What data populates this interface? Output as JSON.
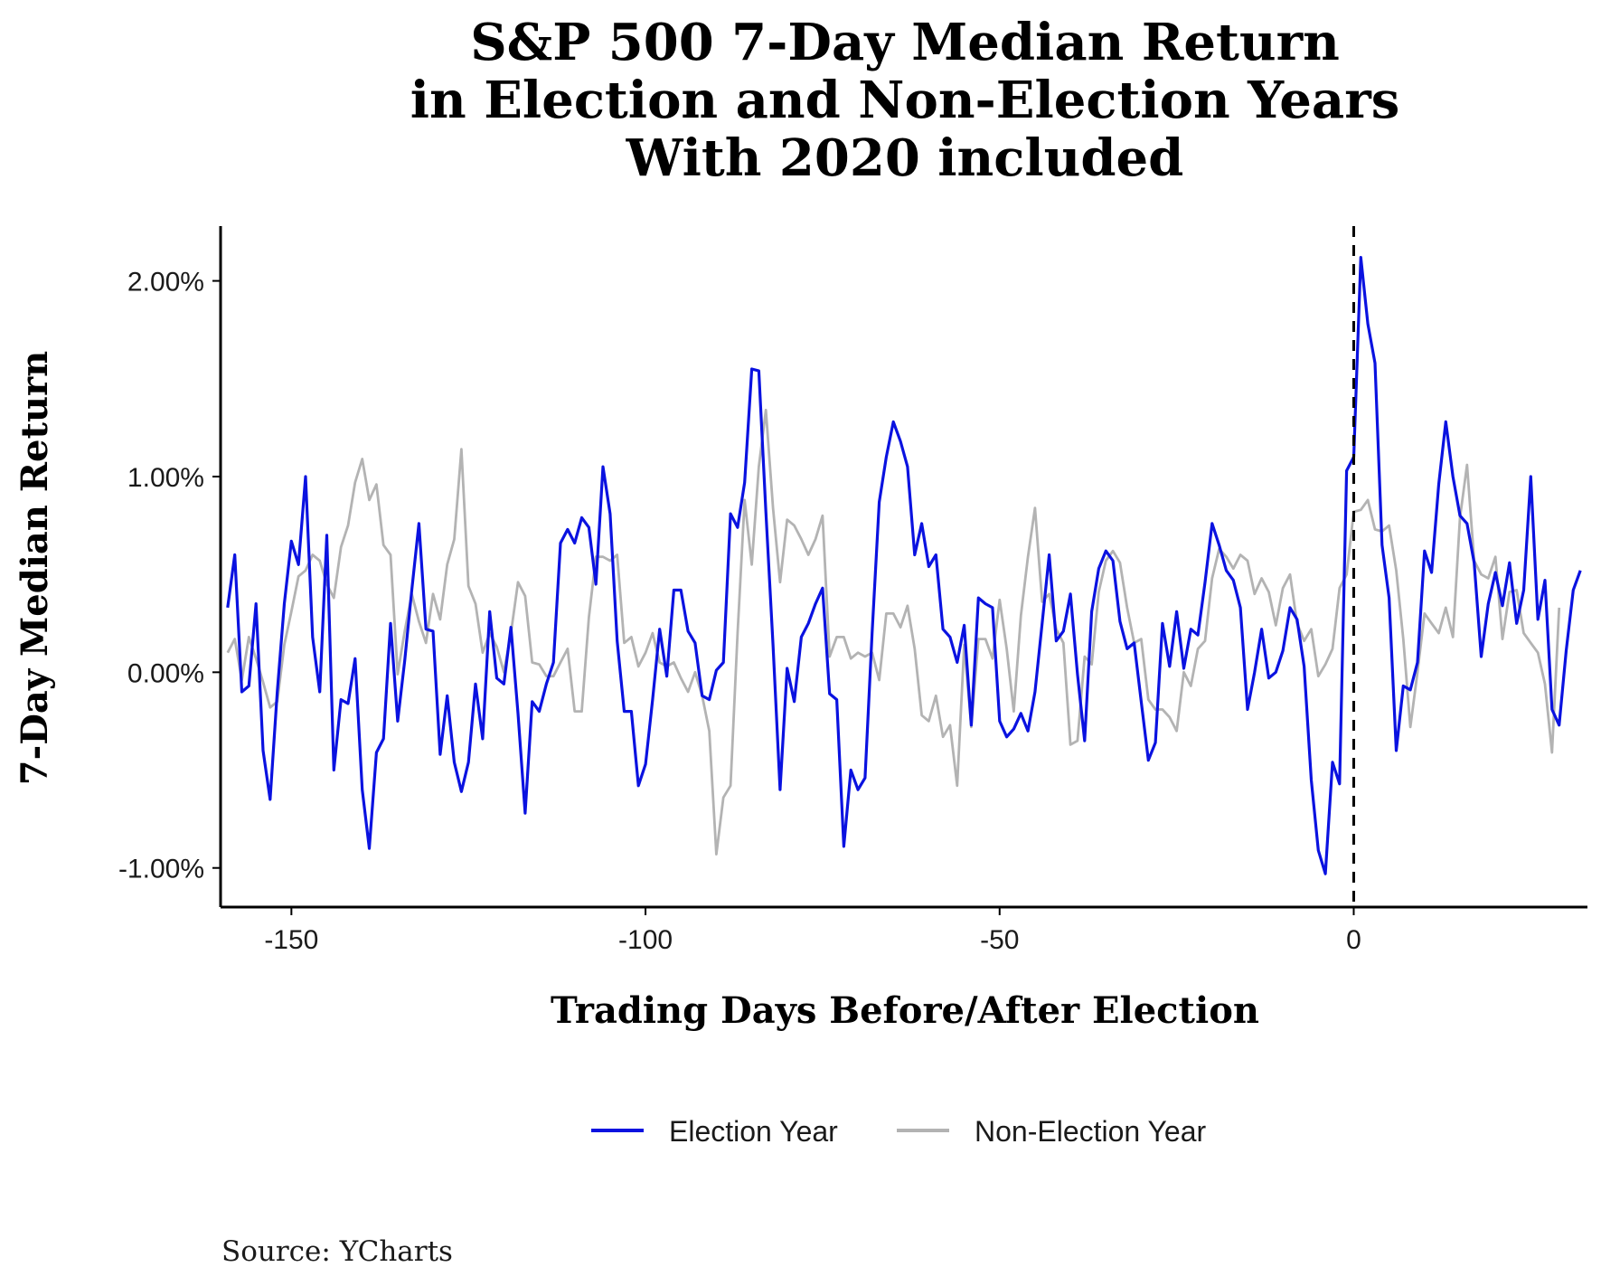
{
  "chart_data": {
    "type": "line",
    "title_lines": [
      "S&P 500 7-Day Median Return",
      "in Election and Non-Election Years",
      "With 2020 included"
    ],
    "xlabel": "Trading Days Before/After Election",
    "ylabel": "7-Day Median Return",
    "source": "Source:  YCharts",
    "xlim": [
      -160,
      33
    ],
    "ylim": [
      -1.2,
      2.28
    ],
    "x_ticks": [
      -150,
      -100,
      -50,
      0
    ],
    "x_tick_labels": [
      "-150",
      "-100",
      "-50",
      "0"
    ],
    "y_ticks": [
      -1,
      0,
      1,
      2
    ],
    "y_tick_labels": [
      "-1.00%",
      "0.00%",
      "1.00%",
      "2.00%"
    ],
    "vline_x": 0,
    "legend_position": "bottom",
    "x_start": -159,
    "series": [
      {
        "name": "Election Year",
        "color": "#0a12e0",
        "values": [
          0.33,
          0.6,
          -0.1,
          -0.07,
          0.35,
          -0.4,
          -0.65,
          -0.1,
          0.35,
          0.67,
          0.55,
          1.0,
          0.18,
          -0.1,
          0.7,
          -0.5,
          -0.14,
          -0.16,
          0.07,
          -0.6,
          -0.9,
          -0.41,
          -0.34,
          0.25,
          -0.25,
          0.06,
          0.42,
          0.76,
          0.22,
          0.21,
          -0.42,
          -0.12,
          -0.46,
          -0.61,
          -0.46,
          -0.06,
          -0.34,
          0.31,
          -0.03,
          -0.06,
          0.23,
          -0.21,
          -0.72,
          -0.15,
          -0.2,
          -0.06,
          0.05,
          0.66,
          0.73,
          0.66,
          0.79,
          0.74,
          0.45,
          1.05,
          0.81,
          0.16,
          -0.2,
          -0.2,
          -0.58,
          -0.47,
          -0.14,
          0.22,
          -0.02,
          0.42,
          0.42,
          0.21,
          0.15,
          -0.12,
          -0.14,
          0.01,
          0.05,
          0.81,
          0.74,
          0.97,
          1.55,
          1.54,
          0.82,
          0.14,
          -0.6,
          0.02,
          -0.15,
          0.18,
          0.25,
          0.35,
          0.43,
          -0.11,
          -0.14,
          -0.89,
          -0.5,
          -0.6,
          -0.54,
          0.2,
          0.87,
          1.1,
          1.28,
          1.18,
          1.05,
          0.6,
          0.76,
          0.54,
          0.6,
          0.22,
          0.18,
          0.05,
          0.24,
          -0.27,
          0.38,
          0.35,
          0.33,
          -0.25,
          -0.33,
          -0.29,
          -0.21,
          -0.3,
          -0.1,
          0.25,
          0.6,
          0.16,
          0.21,
          0.4,
          -0.01,
          -0.35,
          0.31,
          0.53,
          0.62,
          0.57,
          0.26,
          0.12,
          0.15,
          -0.15,
          -0.45,
          -0.36,
          0.25,
          0.03,
          0.31,
          0.02,
          0.22,
          0.19,
          0.46,
          0.76,
          0.65,
          0.52,
          0.47,
          0.33,
          -0.19,
          0.0,
          0.22,
          -0.03,
          0.0,
          0.11,
          0.33,
          0.27,
          0.03,
          -0.55,
          -0.91,
          -1.03,
          -0.46,
          -0.57,
          1.03,
          1.1,
          2.12,
          1.78,
          1.58,
          0.65,
          0.38,
          -0.4,
          -0.07,
          -0.09,
          0.05,
          0.62,
          0.51,
          0.96,
          1.28,
          1.0,
          0.8,
          0.76,
          0.56,
          0.08,
          0.35,
          0.51,
          0.34,
          0.56,
          0.25,
          0.42,
          1.0,
          0.27,
          0.47,
          -0.19,
          -0.27,
          0.11,
          0.42,
          0.52
        ]
      },
      {
        "name": "Non-Election Year",
        "color": "#b3b3b3",
        "values": [
          0.1,
          0.17,
          -0.04,
          0.18,
          0.07,
          -0.05,
          -0.18,
          -0.15,
          0.14,
          0.31,
          0.49,
          0.52,
          0.6,
          0.57,
          0.45,
          0.38,
          0.64,
          0.75,
          0.97,
          1.09,
          0.88,
          0.96,
          0.65,
          0.6,
          -0.01,
          0.21,
          0.4,
          0.26,
          0.15,
          0.4,
          0.27,
          0.55,
          0.68,
          1.14,
          0.44,
          0.35,
          0.1,
          0.2,
          0.13,
          0.0,
          0.2,
          0.46,
          0.39,
          0.05,
          0.04,
          -0.02,
          -0.02,
          0.05,
          0.12,
          -0.2,
          -0.2,
          0.28,
          0.59,
          0.59,
          0.57,
          0.6,
          0.15,
          0.18,
          0.03,
          0.1,
          0.2,
          0.05,
          0.03,
          0.05,
          -0.03,
          -0.1,
          0.0,
          -0.12,
          -0.3,
          -0.93,
          -0.64,
          -0.58,
          0.2,
          0.88,
          0.55,
          1.05,
          1.34,
          0.84,
          0.46,
          0.78,
          0.75,
          0.68,
          0.6,
          0.68,
          0.8,
          0.08,
          0.18,
          0.18,
          0.07,
          0.1,
          0.08,
          0.1,
          -0.04,
          0.3,
          0.3,
          0.23,
          0.34,
          0.12,
          -0.22,
          -0.25,
          -0.12,
          -0.33,
          -0.27,
          -0.58,
          0.14,
          -0.28,
          0.17,
          0.17,
          0.07,
          0.37,
          0.12,
          -0.2,
          0.29,
          0.59,
          0.84,
          0.36,
          0.4,
          0.22,
          0.15,
          -0.37,
          -0.35,
          0.08,
          0.04,
          0.41,
          0.57,
          0.62,
          0.56,
          0.33,
          0.15,
          0.17,
          -0.14,
          -0.19,
          -0.19,
          -0.23,
          -0.3,
          0.0,
          -0.07,
          0.12,
          0.16,
          0.48,
          0.63,
          0.59,
          0.53,
          0.6,
          0.57,
          0.4,
          0.48,
          0.41,
          0.24,
          0.43,
          0.5,
          0.25,
          0.16,
          0.22,
          -0.02,
          0.04,
          0.12,
          0.43,
          0.5,
          0.82,
          0.83,
          0.88,
          0.73,
          0.72,
          0.75,
          0.52,
          0.17,
          -0.28,
          0.0,
          0.3,
          0.25,
          0.2,
          0.33,
          0.18,
          0.79,
          1.06,
          0.57,
          0.5,
          0.48,
          0.59,
          0.17,
          0.41,
          0.42,
          0.2,
          0.15,
          0.1,
          -0.06,
          -0.41,
          0.33
        ]
      }
    ]
  }
}
